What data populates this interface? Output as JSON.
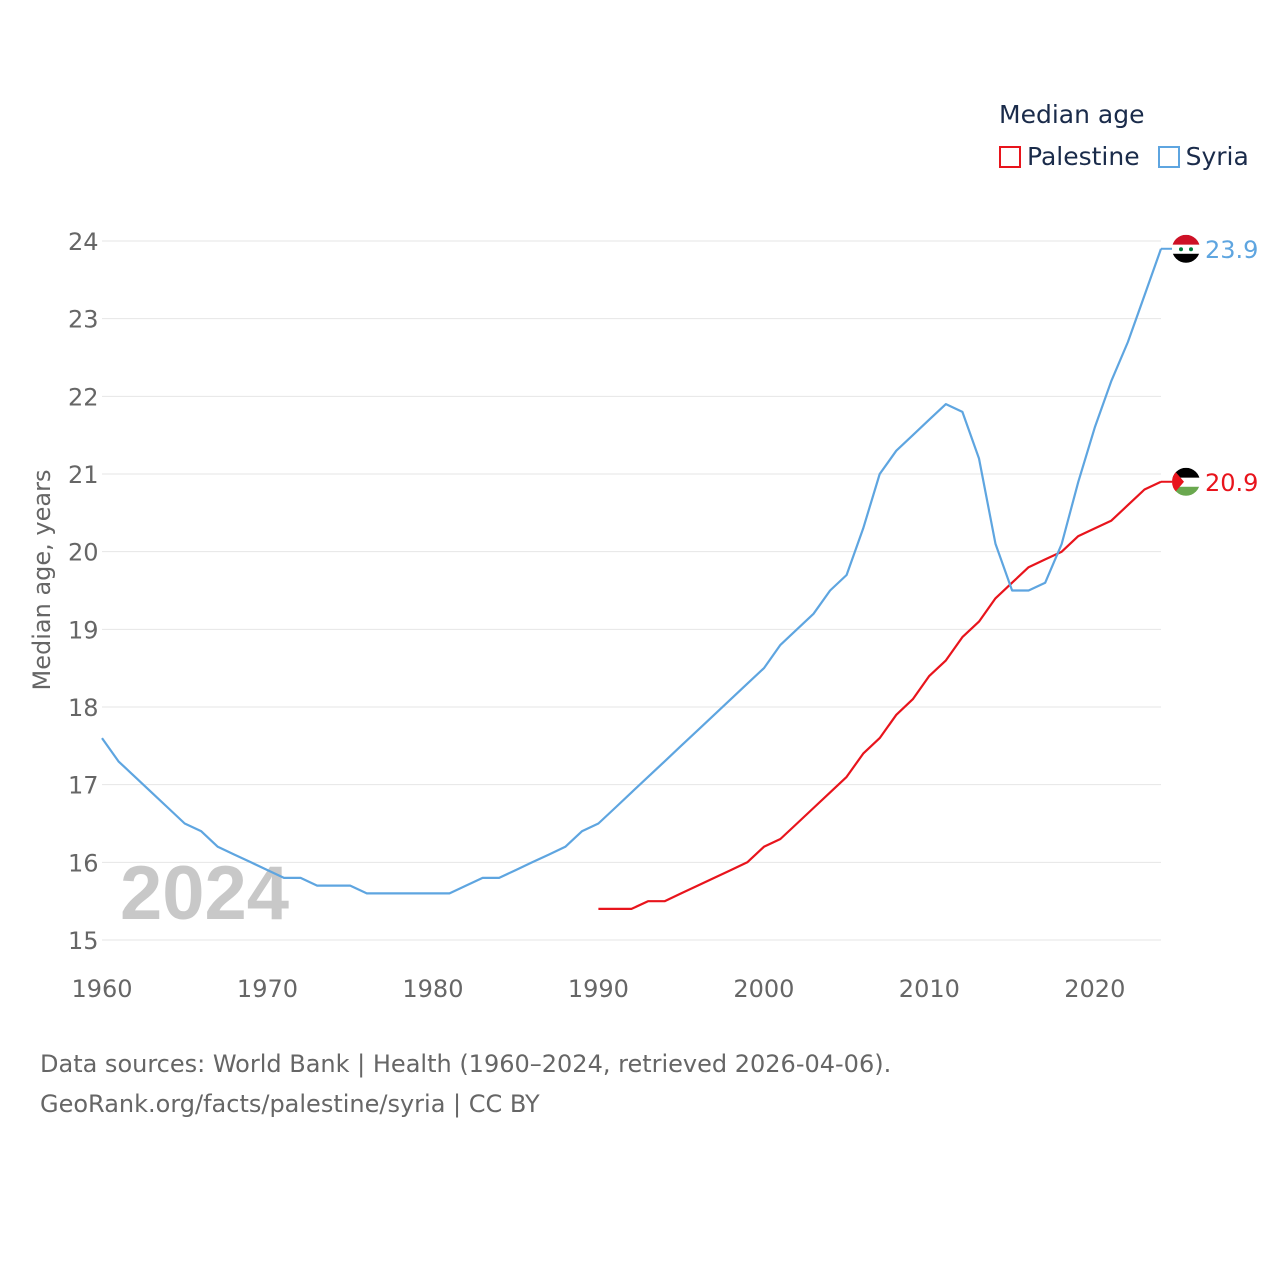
{
  "chart_data": {
    "type": "line",
    "title": "Median age",
    "ylabel": "Median age, years",
    "xlabel": "",
    "xlim": [
      1960,
      2024
    ],
    "ylim": [
      15,
      24
    ],
    "x_ticks": [
      1960,
      1970,
      1980,
      1990,
      2000,
      2010,
      2020
    ],
    "y_ticks": [
      15,
      16,
      17,
      18,
      19,
      20,
      21,
      22,
      23,
      24
    ],
    "grid": true,
    "legend_position": "top-right",
    "year_stamp": "2024",
    "series": [
      {
        "name": "Palestine",
        "color": "#e8141c",
        "end_label": "20.9",
        "flag_icon": "palestine-flag-icon",
        "points": [
          [
            1990,
            15.4
          ],
          [
            1991,
            15.4
          ],
          [
            1992,
            15.4
          ],
          [
            1993,
            15.5
          ],
          [
            1994,
            15.5
          ],
          [
            1995,
            15.6
          ],
          [
            1996,
            15.7
          ],
          [
            1997,
            15.8
          ],
          [
            1998,
            15.9
          ],
          [
            1999,
            16.0
          ],
          [
            2000,
            16.2
          ],
          [
            2001,
            16.3
          ],
          [
            2002,
            16.5
          ],
          [
            2003,
            16.7
          ],
          [
            2004,
            16.9
          ],
          [
            2005,
            17.1
          ],
          [
            2006,
            17.4
          ],
          [
            2007,
            17.6
          ],
          [
            2008,
            17.9
          ],
          [
            2009,
            18.1
          ],
          [
            2010,
            18.4
          ],
          [
            2011,
            18.6
          ],
          [
            2012,
            18.9
          ],
          [
            2013,
            19.1
          ],
          [
            2014,
            19.4
          ],
          [
            2015,
            19.6
          ],
          [
            2016,
            19.8
          ],
          [
            2017,
            19.9
          ],
          [
            2018,
            20.0
          ],
          [
            2019,
            20.2
          ],
          [
            2020,
            20.3
          ],
          [
            2021,
            20.4
          ],
          [
            2022,
            20.6
          ],
          [
            2023,
            20.8
          ],
          [
            2024,
            20.9
          ]
        ]
      },
      {
        "name": "Syria",
        "color": "#5ea5e0",
        "end_label": "23.9",
        "flag_icon": "syria-flag-icon",
        "points": [
          [
            1960,
            17.6
          ],
          [
            1961,
            17.3
          ],
          [
            1962,
            17.1
          ],
          [
            1963,
            16.9
          ],
          [
            1964,
            16.7
          ],
          [
            1965,
            16.5
          ],
          [
            1966,
            16.4
          ],
          [
            1967,
            16.2
          ],
          [
            1968,
            16.1
          ],
          [
            1969,
            16.0
          ],
          [
            1970,
            15.9
          ],
          [
            1971,
            15.8
          ],
          [
            1972,
            15.8
          ],
          [
            1973,
            15.7
          ],
          [
            1974,
            15.7
          ],
          [
            1975,
            15.7
          ],
          [
            1976,
            15.6
          ],
          [
            1977,
            15.6
          ],
          [
            1978,
            15.6
          ],
          [
            1979,
            15.6
          ],
          [
            1980,
            15.6
          ],
          [
            1981,
            15.6
          ],
          [
            1982,
            15.7
          ],
          [
            1983,
            15.8
          ],
          [
            1984,
            15.8
          ],
          [
            1985,
            15.9
          ],
          [
            1986,
            16.0
          ],
          [
            1987,
            16.1
          ],
          [
            1988,
            16.2
          ],
          [
            1989,
            16.4
          ],
          [
            1990,
            16.5
          ],
          [
            1991,
            16.7
          ],
          [
            1992,
            16.9
          ],
          [
            1993,
            17.1
          ],
          [
            1994,
            17.3
          ],
          [
            1995,
            17.5
          ],
          [
            1996,
            17.7
          ],
          [
            1997,
            17.9
          ],
          [
            1998,
            18.1
          ],
          [
            1999,
            18.3
          ],
          [
            2000,
            18.5
          ],
          [
            2001,
            18.8
          ],
          [
            2002,
            19.0
          ],
          [
            2003,
            19.2
          ],
          [
            2004,
            19.5
          ],
          [
            2005,
            19.7
          ],
          [
            2006,
            20.3
          ],
          [
            2007,
            21.0
          ],
          [
            2008,
            21.3
          ],
          [
            2009,
            21.5
          ],
          [
            2010,
            21.7
          ],
          [
            2011,
            21.9
          ],
          [
            2012,
            21.8
          ],
          [
            2013,
            21.2
          ],
          [
            2014,
            20.1
          ],
          [
            2015,
            19.5
          ],
          [
            2016,
            19.5
          ],
          [
            2017,
            19.6
          ],
          [
            2018,
            20.1
          ],
          [
            2019,
            20.9
          ],
          [
            2020,
            21.6
          ],
          [
            2021,
            22.2
          ],
          [
            2022,
            22.7
          ],
          [
            2023,
            23.3
          ],
          [
            2024,
            23.9
          ]
        ]
      }
    ]
  },
  "legend": {
    "title": "Median age",
    "items": [
      {
        "label": "Palestine",
        "color": "#e8141c"
      },
      {
        "label": "Syria",
        "color": "#5ea5e0"
      }
    ]
  },
  "footer": {
    "line1": "Data sources: World Bank | Health (1960–2024, retrieved 2026-04-06).",
    "line2": "GeoRank.org/facts/palestine/syria | CC BY"
  }
}
